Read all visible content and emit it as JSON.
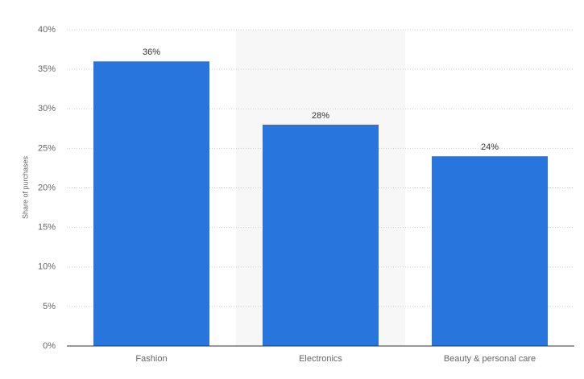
{
  "chart_data": {
    "type": "bar",
    "y_label": "Share of purchases",
    "categories": [
      "Fashion",
      "Electronics",
      "Beauty & personal care"
    ],
    "values": [
      36,
      28,
      24
    ],
    "value_labels": [
      "36%",
      "28%",
      "24%"
    ],
    "color": "#2876dd",
    "ylim": [
      0,
      40
    ],
    "yticks": [
      {
        "value": 0,
        "label": "0%"
      },
      {
        "value": 5,
        "label": "5%"
      },
      {
        "value": 10,
        "label": "10%"
      },
      {
        "value": 15,
        "label": "15%"
      },
      {
        "value": 20,
        "label": "20%"
      },
      {
        "value": 25,
        "label": "25%"
      },
      {
        "value": 30,
        "label": "30%"
      },
      {
        "value": 35,
        "label": "35%"
      },
      {
        "value": 40,
        "label": "40%"
      }
    ],
    "grid": true
  }
}
